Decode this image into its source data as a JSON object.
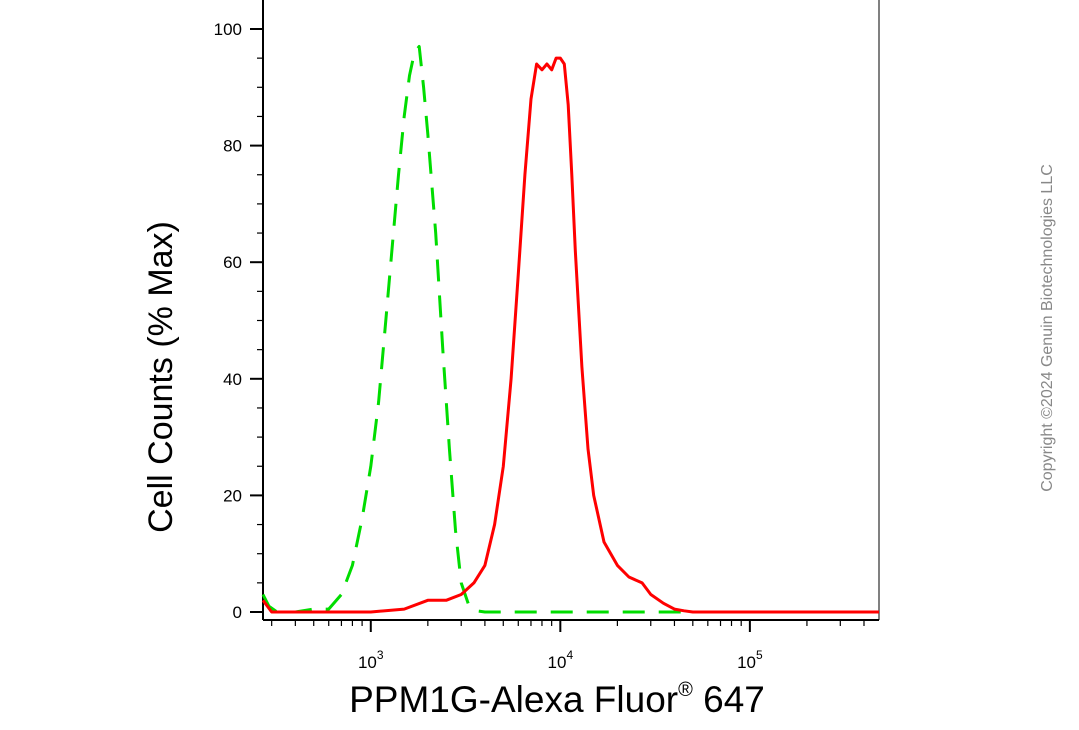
{
  "chart_data": {
    "type": "line",
    "xlabel": "PPM1G-Alexa Fluor",
    "xlabel_sup": "®",
    "xlabel_suffix": " 647",
    "ylabel": "Cell Counts (% Max)",
    "x_scale": "log",
    "xlim": [
      270,
      480000
    ],
    "ylim": [
      -2,
      105
    ],
    "y_ticks": [
      0,
      20,
      40,
      60,
      80,
      100
    ],
    "x_tick_labels": [
      {
        "value": 1000,
        "base": "10",
        "exp": "3"
      },
      {
        "value": 10000,
        "base": "10",
        "exp": "4"
      },
      {
        "value": 100000,
        "base": "10",
        "exp": "5"
      }
    ],
    "grid": false,
    "legend": "none",
    "series": [
      {
        "color": "#00dd00",
        "style": "dashed",
        "x": [
          270,
          290,
          320,
          400,
          500,
          600,
          700,
          800,
          900,
          1000,
          1100,
          1200,
          1300,
          1400,
          1500,
          1600,
          1700,
          1800,
          1900,
          2000,
          2200,
          2400,
          2600,
          2800,
          3000,
          3300,
          3600,
          4000,
          5000,
          10000,
          50000,
          480000
        ],
        "y": [
          3,
          1,
          0,
          0,
          0.5,
          0.5,
          3,
          8,
          16,
          25,
          36,
          50,
          63,
          75,
          85,
          92,
          96,
          97,
          90,
          82,
          65,
          45,
          28,
          14,
          5,
          1,
          0.2,
          0,
          0,
          0,
          0,
          0
        ]
      },
      {
        "color": "#ff0000",
        "style": "solid",
        "x": [
          270,
          300,
          1000,
          1500,
          2000,
          2500,
          3000,
          3500,
          4000,
          4500,
          5000,
          5500,
          6000,
          6500,
          7000,
          7500,
          8000,
          8500,
          9000,
          9500,
          10000,
          10500,
          11000,
          11500,
          12000,
          13000,
          14000,
          15000,
          17000,
          20000,
          23000,
          27000,
          30000,
          35000,
          40000,
          45000,
          50000,
          100000,
          480000
        ],
        "y": [
          2,
          0,
          0,
          0.5,
          2,
          2,
          3,
          5,
          8,
          15,
          25,
          40,
          58,
          75,
          88,
          94,
          93,
          94,
          93,
          95,
          95,
          94,
          87,
          75,
          62,
          42,
          28,
          20,
          12,
          8,
          6,
          5,
          3,
          1.5,
          0.5,
          0.2,
          0,
          0,
          0
        ]
      }
    ]
  },
  "watermark": "Copyright ©2024 Genuin Biotechnologies LLC"
}
